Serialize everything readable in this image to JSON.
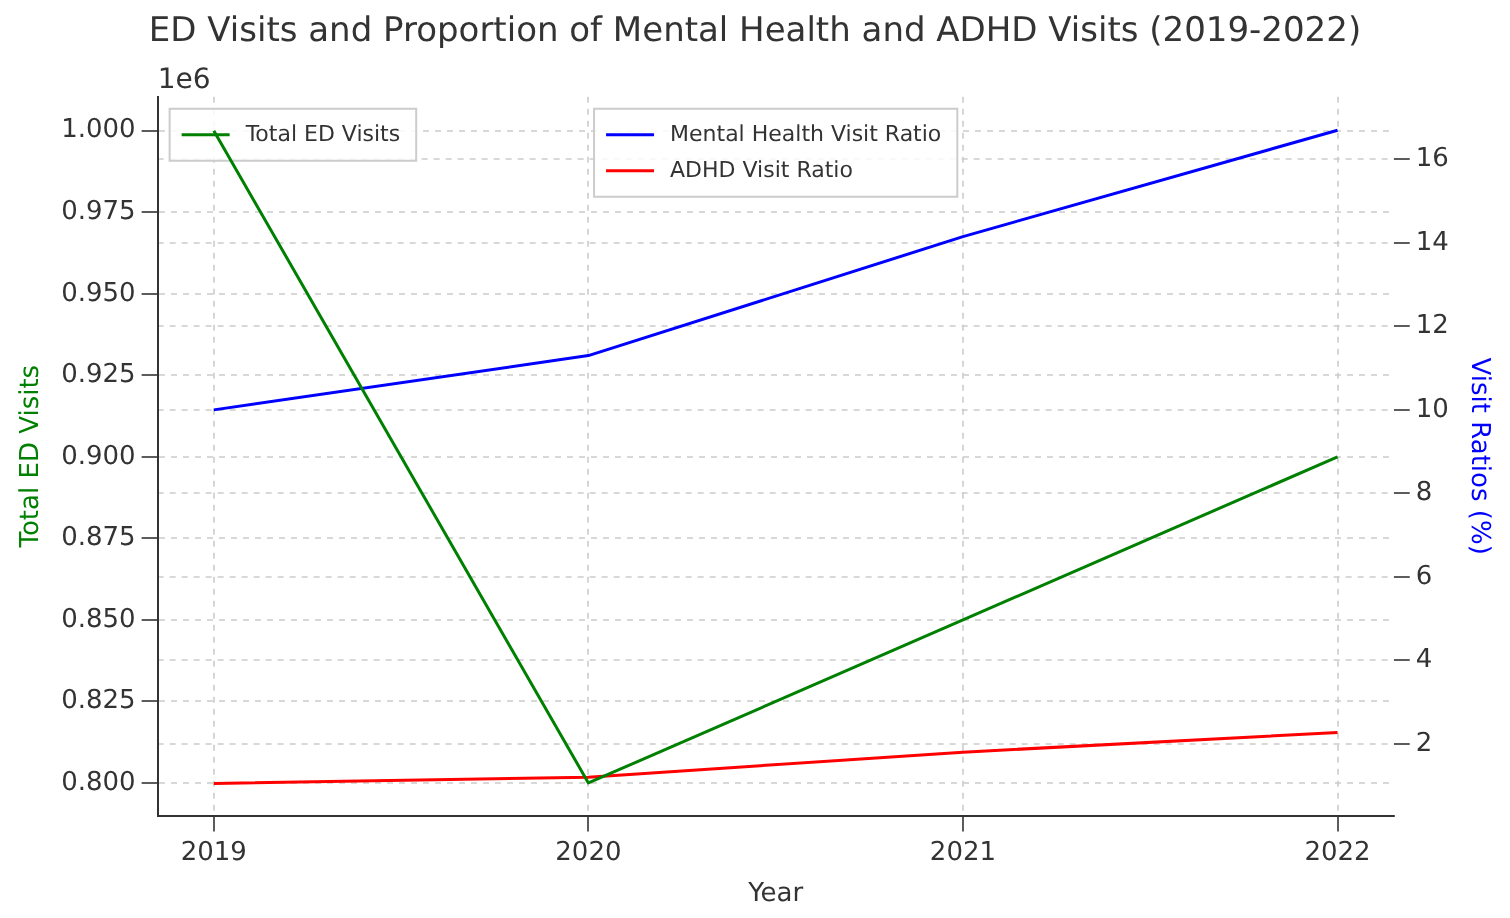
{
  "chart_data": {
    "type": "line",
    "title": "ED Visits and Proportion of Mental Health and ADHD Visits (2019-2022)",
    "xlabel": "Year",
    "ylabel": "Total ED Visits",
    "y2label": "Visit Ratios (%)",
    "annotations": [
      "1e6"
    ],
    "x": [
      2019,
      2020,
      2021,
      2022
    ],
    "xlim": [
      2018.85,
      2022.15
    ],
    "xticks": [
      2019,
      2020,
      2021,
      2022
    ],
    "ylim": [
      0.79,
      1.0104
    ],
    "yticks": [
      {
        "value": 0.8,
        "label": "0.800"
      },
      {
        "value": 0.825,
        "label": "0.825"
      },
      {
        "value": 0.85,
        "label": "0.850"
      },
      {
        "value": 0.875,
        "label": "0.875"
      },
      {
        "value": 0.9,
        "label": "0.900"
      },
      {
        "value": 0.925,
        "label": "0.925"
      },
      {
        "value": 0.95,
        "label": "0.950"
      },
      {
        "value": 0.975,
        "label": "0.975"
      },
      {
        "value": 1.0,
        "label": "1.000"
      }
    ],
    "y2lim": [
      0.28,
      17.5
    ],
    "y2ticks": [
      2,
      4,
      6,
      8,
      10,
      12,
      14,
      16
    ],
    "grid": true,
    "legend": "top",
    "marker": "none",
    "line_style": "solid",
    "series": [
      {
        "name": "Total ED Visits",
        "color": "#008000",
        "values": [
          1.0,
          0.8,
          0.85,
          0.9
        ]
      },
      {
        "name": "Mental Health Visit Ratio",
        "color": "#0000ff",
        "axis": "y2",
        "values": [
          10.0,
          11.3,
          14.15,
          16.7
        ]
      },
      {
        "name": "ADHD Visit Ratio",
        "color": "#ff0000",
        "axis": "y2",
        "values": [
          1.05,
          1.2,
          1.8,
          2.27
        ]
      }
    ]
  }
}
